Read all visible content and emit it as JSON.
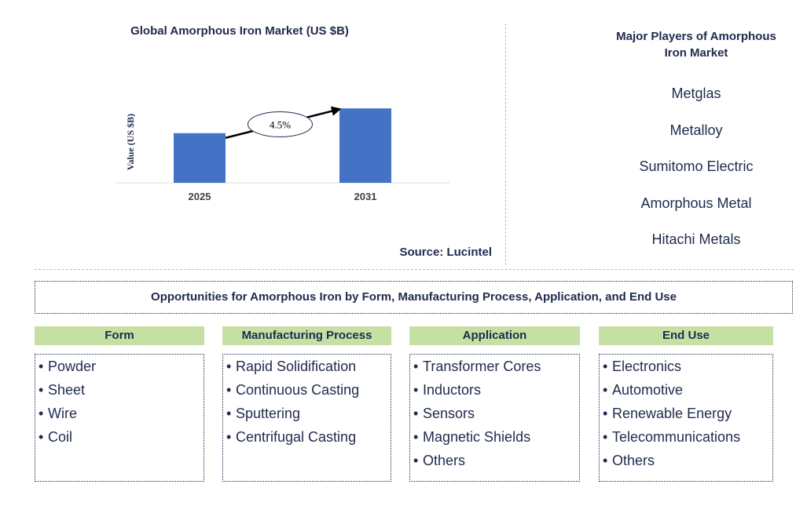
{
  "chart_data": {
    "type": "bar",
    "title": "Global Amorphous Iron Market (US $B)",
    "ylabel": "Value (US $B)",
    "xlabel": "",
    "categories": [
      "2025",
      "2031"
    ],
    "values": [
      2.0,
      3.0
    ],
    "ylim": [
      0,
      3.1
    ],
    "annotation": "4.5%",
    "bar_color": "#4472c4",
    "source": "Source: Lucintel"
  },
  "players": {
    "title_line1": "Major Players of Amorphous",
    "title_line2": "Iron Market",
    "items": [
      "Metglas",
      "Metalloy",
      "Sumitomo Electric",
      "Amorphous Metal",
      "Hitachi Metals"
    ]
  },
  "opportunities": {
    "title": "Opportunities for Amorphous Iron by Form, Manufacturing Process, Application, and End Use"
  },
  "segments": [
    {
      "title": "Form",
      "items": [
        "Powder",
        "Sheet",
        "Wire",
        "Coil"
      ]
    },
    {
      "title": "Manufacturing Process",
      "items": [
        "Rapid Solidification",
        "Continuous Casting",
        "Sputtering",
        "Centrifugal Casting"
      ]
    },
    {
      "title": "Application",
      "items": [
        "Transformer Cores",
        "Inductors",
        "Sensors",
        "Magnetic Shields",
        "Others"
      ]
    },
    {
      "title": "End Use",
      "items": [
        "Electronics",
        "Automotive",
        "Renewable Energy",
        "Telecommunications",
        "Others"
      ]
    }
  ],
  "colors": {
    "text": "#1f2a4d",
    "segment_header_bg": "#c6e0a4",
    "divider": "#f0b43c",
    "bar": "#4472c4"
  }
}
